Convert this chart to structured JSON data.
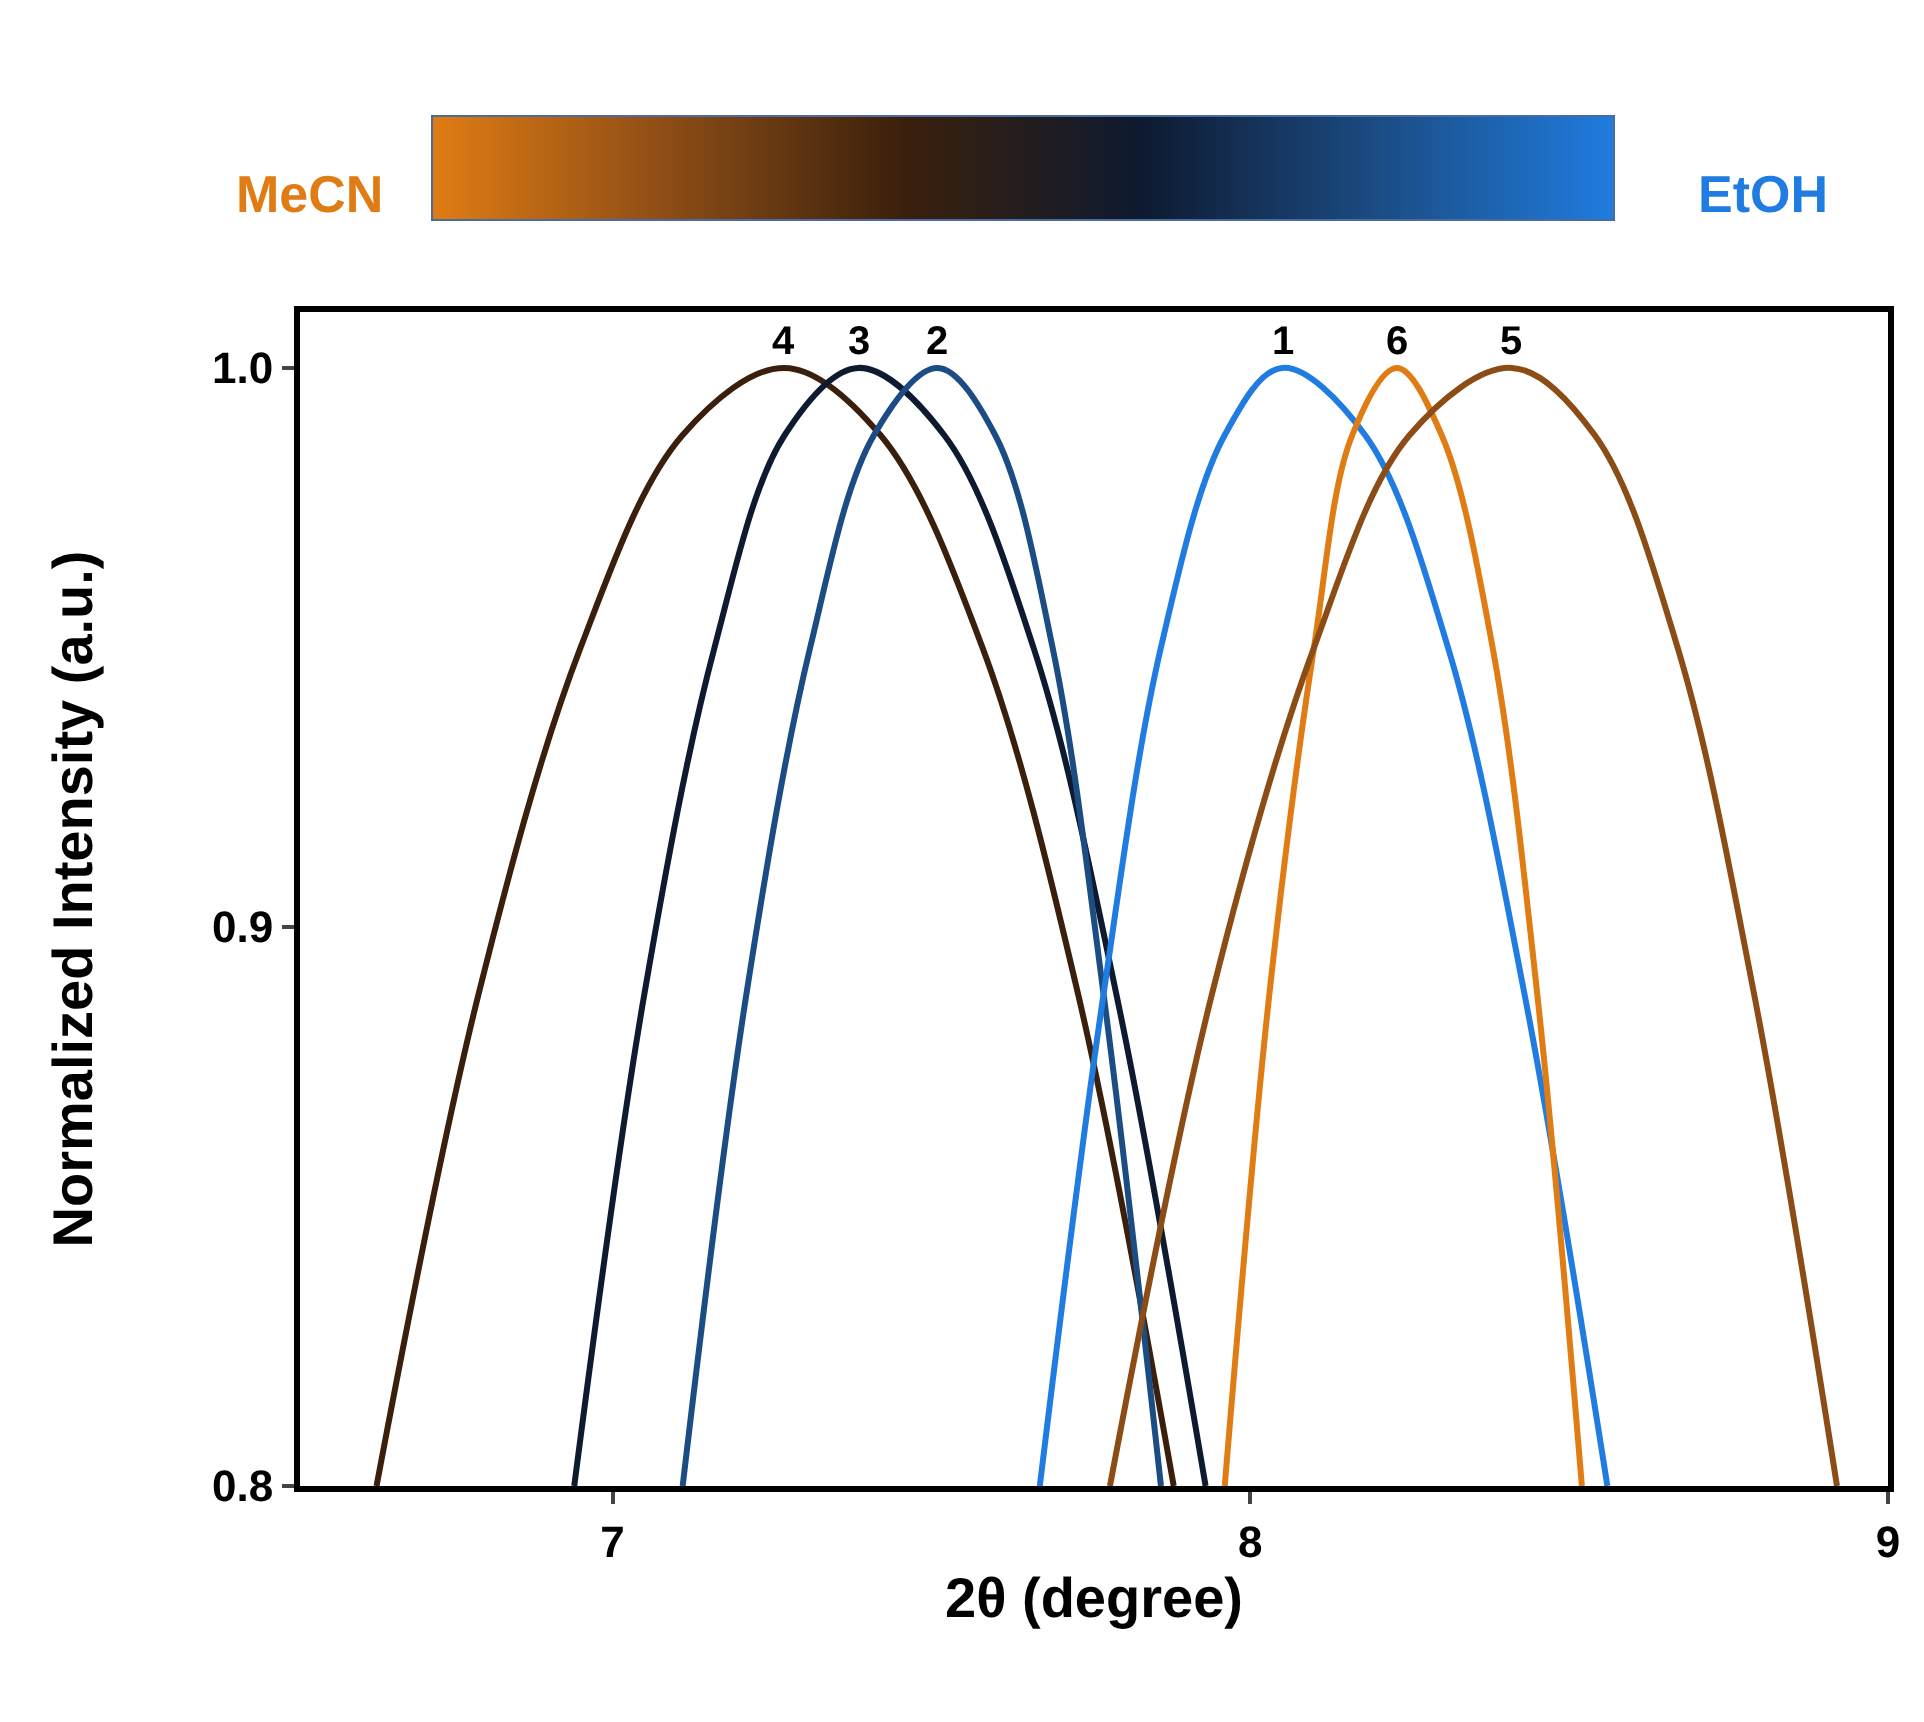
{
  "chart_data": {
    "type": "line",
    "xlabel": "2θ (degree)",
    "ylabel": "Normalized Intensity (a.u.)",
    "annotations": [
      "MeCN",
      "EtOH"
    ],
    "xlim": [
      6.51,
      9
    ],
    "xticks": [
      7,
      8,
      9
    ],
    "ylim": [
      0.8,
      1.01
    ],
    "yticks": [
      {
        "value": 0.8,
        "label": "0.8"
      },
      {
        "value": 0.9,
        "label": "0.9"
      },
      {
        "value": 1.0,
        "label": "1.0"
      }
    ],
    "legend": false,
    "marker": "none",
    "line_style": "solid",
    "series": [
      {
        "name": "4",
        "color": "#3a200c",
        "x": [
          6.63,
          6.79,
          6.95,
          7.11,
          7.27,
          7.42,
          7.58,
          7.73,
          7.88
        ],
        "values": [
          0.8,
          0.888,
          0.95,
          0.988,
          1.0,
          0.988,
          0.95,
          0.888,
          0.8
        ]
      },
      {
        "name": "3",
        "color": "#0e1a30",
        "x": [
          6.94,
          7.05,
          7.16,
          7.27,
          7.385,
          7.52,
          7.66,
          7.79,
          7.93
        ],
        "values": [
          0.8,
          0.888,
          0.95,
          0.988,
          1.0,
          0.988,
          0.95,
          0.888,
          0.8
        ]
      },
      {
        "name": "2",
        "color": "#1b4c84",
        "x": [
          7.11,
          7.21,
          7.31,
          7.41,
          7.51,
          7.6,
          7.69,
          7.77,
          7.86
        ],
        "values": [
          0.8,
          0.888,
          0.95,
          0.988,
          1.0,
          0.988,
          0.95,
          0.888,
          0.8
        ]
      },
      {
        "name": "1",
        "color": "#207ce0",
        "x": [
          7.67,
          7.77,
          7.86,
          7.96,
          8.05,
          8.18,
          8.31,
          8.43,
          8.56
        ],
        "values": [
          0.8,
          0.888,
          0.95,
          0.988,
          1.0,
          0.988,
          0.95,
          0.888,
          0.8
        ]
      },
      {
        "name": "6",
        "color": "#e07c14",
        "x": [
          7.96,
          8.03,
          8.1,
          8.16,
          8.23,
          8.3,
          8.38,
          8.45,
          8.52
        ],
        "values": [
          0.8,
          0.888,
          0.95,
          0.988,
          1.0,
          0.988,
          0.95,
          0.888,
          0.8
        ]
      },
      {
        "name": "5",
        "color": "#8c4c16",
        "x": [
          7.78,
          7.94,
          8.1,
          8.25,
          8.41,
          8.54,
          8.67,
          8.79,
          8.92
        ],
        "values": [
          0.8,
          0.888,
          0.95,
          0.988,
          1.0,
          0.988,
          0.95,
          0.888,
          0.8
        ]
      }
    ]
  }
}
